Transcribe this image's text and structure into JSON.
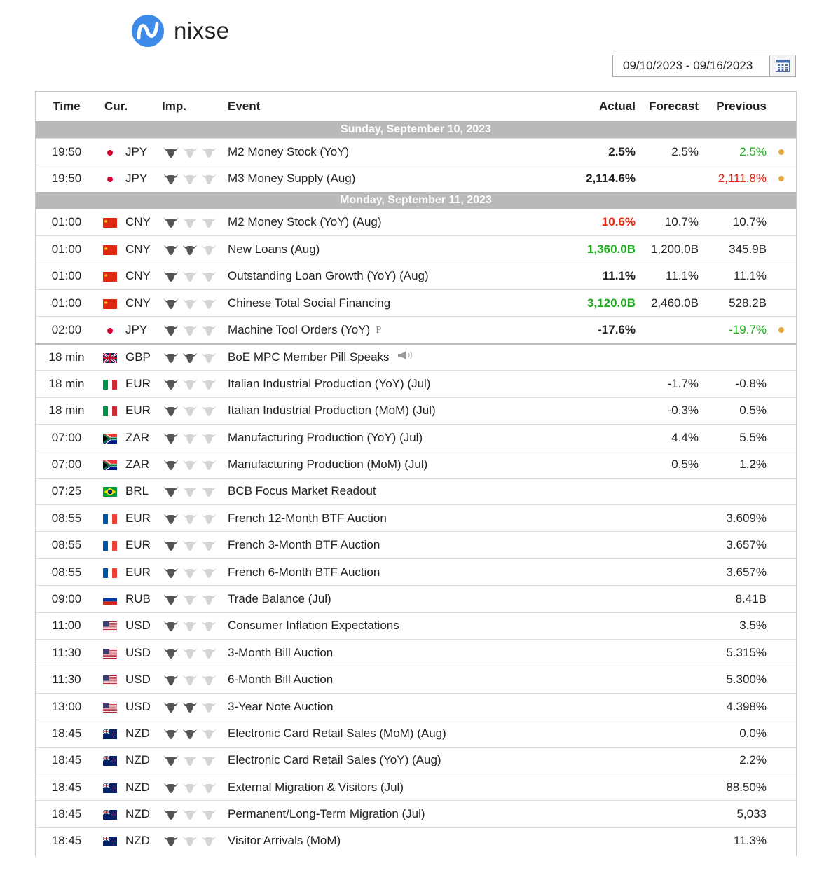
{
  "brand": {
    "name": "nixse"
  },
  "date_range": {
    "value": "09/10/2023 - 09/16/2023",
    "icon": "calendar-icon"
  },
  "columns": {
    "time": "Time",
    "cur": "Cur.",
    "imp": "Imp.",
    "event": "Event",
    "actual": "Actual",
    "forecast": "Forecast",
    "previous": "Previous"
  },
  "colors": {
    "bull_active": "#555555",
    "bull_inactive": "#d4d4d4",
    "positive": "#1faa1f",
    "negative": "#e8220d",
    "pending_dot": "#e8a73b",
    "day_header_bg": "#b9b9b9"
  },
  "groups": [
    {
      "day": "Sunday, September 10, 2023",
      "rows": [
        {
          "time": "19:50",
          "flag": "jp",
          "cur": "JPY",
          "imp": 1,
          "event": "M2 Money Stock (YoY)",
          "actual": "2.5%",
          "actual_color": "",
          "forecast": "2.5%",
          "previous": "2.5%",
          "previous_color": "green",
          "dot": true
        },
        {
          "time": "19:50",
          "flag": "jp",
          "cur": "JPY",
          "imp": 1,
          "event": "M3 Money Supply (Aug)",
          "actual": "2,114.6%",
          "actual_color": "",
          "forecast": "",
          "previous": "2,111.8%",
          "previous_color": "red",
          "dot": true
        }
      ]
    },
    {
      "day": "Monday, September 11, 2023",
      "rows": [
        {
          "time": "01:00",
          "flag": "cn",
          "cur": "CNY",
          "imp": 1,
          "event": "M2 Money Stock (YoY) (Aug)",
          "actual": "10.6%",
          "actual_color": "red",
          "forecast": "10.7%",
          "previous": "10.7%",
          "previous_color": "",
          "dot": false
        },
        {
          "time": "01:00",
          "flag": "cn",
          "cur": "CNY",
          "imp": 2,
          "event": "New Loans (Aug)",
          "actual": "1,360.0B",
          "actual_color": "green",
          "forecast": "1,200.0B",
          "previous": "345.9B",
          "previous_color": "",
          "dot": false
        },
        {
          "time": "01:00",
          "flag": "cn",
          "cur": "CNY",
          "imp": 1,
          "event": "Outstanding Loan Growth (YoY) (Aug)",
          "actual": "11.1%",
          "actual_color": "",
          "forecast": "11.1%",
          "previous": "11.1%",
          "previous_color": "",
          "dot": false
        },
        {
          "time": "01:00",
          "flag": "cn",
          "cur": "CNY",
          "imp": 1,
          "event": "Chinese Total Social Financing",
          "actual": "3,120.0B",
          "actual_color": "green",
          "forecast": "2,460.0B",
          "previous": "528.2B",
          "previous_color": "",
          "dot": false
        },
        {
          "time": "02:00",
          "flag": "jp",
          "cur": "JPY",
          "imp": 1,
          "event": "Machine Tool Orders (YoY)",
          "badge": "P",
          "actual": "-17.6%",
          "actual_color": "",
          "forecast": "",
          "previous": "-19.7%",
          "previous_color": "green",
          "dot": true
        },
        {
          "time": "18 min",
          "flag": "gb",
          "cur": "GBP",
          "imp": 2,
          "event": "BoE MPC Member Pill Speaks",
          "speaker": true,
          "actual": "",
          "forecast": "",
          "previous": "",
          "sep": true
        },
        {
          "time": "18 min",
          "flag": "it",
          "cur": "EUR",
          "imp": 1,
          "event": "Italian Industrial Production (YoY) (Jul)",
          "actual": "",
          "forecast": "-1.7%",
          "previous": "-0.8%"
        },
        {
          "time": "18 min",
          "flag": "it",
          "cur": "EUR",
          "imp": 1,
          "event": "Italian Industrial Production (MoM) (Jul)",
          "actual": "",
          "forecast": "-0.3%",
          "previous": "0.5%"
        },
        {
          "time": "07:00",
          "flag": "za",
          "cur": "ZAR",
          "imp": 1,
          "event": "Manufacturing Production (YoY) (Jul)",
          "actual": "",
          "forecast": "4.4%",
          "previous": "5.5%"
        },
        {
          "time": "07:00",
          "flag": "za",
          "cur": "ZAR",
          "imp": 1,
          "event": "Manufacturing Production (MoM) (Jul)",
          "actual": "",
          "forecast": "0.5%",
          "previous": "1.2%"
        },
        {
          "time": "07:25",
          "flag": "br",
          "cur": "BRL",
          "imp": 1,
          "event": "BCB Focus Market Readout",
          "actual": "",
          "forecast": "",
          "previous": ""
        },
        {
          "time": "08:55",
          "flag": "fr",
          "cur": "EUR",
          "imp": 1,
          "event": "French 12-Month BTF Auction",
          "actual": "",
          "forecast": "",
          "previous": "3.609%"
        },
        {
          "time": "08:55",
          "flag": "fr",
          "cur": "EUR",
          "imp": 1,
          "event": "French 3-Month BTF Auction",
          "actual": "",
          "forecast": "",
          "previous": "3.657%"
        },
        {
          "time": "08:55",
          "flag": "fr",
          "cur": "EUR",
          "imp": 1,
          "event": "French 6-Month BTF Auction",
          "actual": "",
          "forecast": "",
          "previous": "3.657%"
        },
        {
          "time": "09:00",
          "flag": "ru",
          "cur": "RUB",
          "imp": 1,
          "event": "Trade Balance (Jul)",
          "actual": "",
          "forecast": "",
          "previous": "8.41B"
        },
        {
          "time": "11:00",
          "flag": "us",
          "cur": "USD",
          "imp": 1,
          "event": "Consumer Inflation Expectations",
          "actual": "",
          "forecast": "",
          "previous": "3.5%"
        },
        {
          "time": "11:30",
          "flag": "us",
          "cur": "USD",
          "imp": 1,
          "event": "3-Month Bill Auction",
          "actual": "",
          "forecast": "",
          "previous": "5.315%"
        },
        {
          "time": "11:30",
          "flag": "us",
          "cur": "USD",
          "imp": 1,
          "event": "6-Month Bill Auction",
          "actual": "",
          "forecast": "",
          "previous": "5.300%"
        },
        {
          "time": "13:00",
          "flag": "us",
          "cur": "USD",
          "imp": 2,
          "event": "3-Year Note Auction",
          "actual": "",
          "forecast": "",
          "previous": "4.398%"
        },
        {
          "time": "18:45",
          "flag": "nz",
          "cur": "NZD",
          "imp": 2,
          "event": "Electronic Card Retail Sales (MoM) (Aug)",
          "actual": "",
          "forecast": "",
          "previous": "0.0%"
        },
        {
          "time": "18:45",
          "flag": "nz",
          "cur": "NZD",
          "imp": 1,
          "event": "Electronic Card Retail Sales (YoY) (Aug)",
          "actual": "",
          "forecast": "",
          "previous": "2.2%"
        },
        {
          "time": "18:45",
          "flag": "nz",
          "cur": "NZD",
          "imp": 1,
          "event": "External Migration & Visitors (Jul)",
          "actual": "",
          "forecast": "",
          "previous": "88.50%"
        },
        {
          "time": "18:45",
          "flag": "nz",
          "cur": "NZD",
          "imp": 1,
          "event": "Permanent/Long-Term Migration (Jul)",
          "actual": "",
          "forecast": "",
          "previous": "5,033"
        },
        {
          "time": "18:45",
          "flag": "nz",
          "cur": "NZD",
          "imp": 1,
          "event": "Visitor Arrivals (MoM)",
          "actual": "",
          "forecast": "",
          "previous": "11.3%"
        }
      ]
    }
  ]
}
